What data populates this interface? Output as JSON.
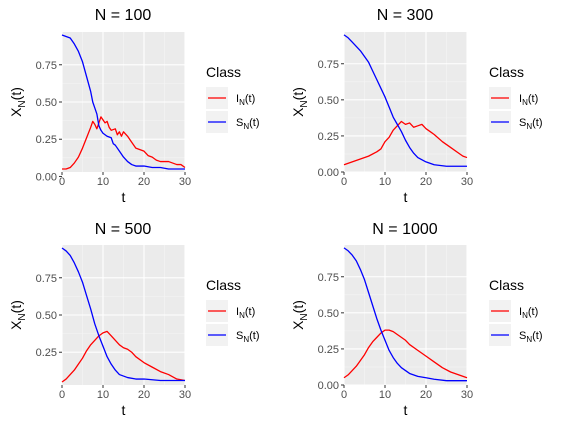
{
  "chart_data": [
    {
      "type": "line",
      "title": "N = 100",
      "xlabel": "t",
      "ylabel_main": "X",
      "ylabel_sub": "N",
      "ylabel_tail": "(t)",
      "xlim": [
        0,
        30
      ],
      "ylim": [
        0.03,
        0.97
      ],
      "x_ticks": [
        0,
        10,
        20,
        30
      ],
      "y_ticks": [
        0.0,
        0.25,
        0.5,
        0.75
      ],
      "y_tick_labels": [
        "0.00",
        "0.25",
        "0.50",
        "0.75"
      ],
      "grid": true,
      "legend_title": "Class",
      "legend_position": "right",
      "series": [
        {
          "name": "I_N(t)",
          "label_main": "I",
          "label_sub": "N",
          "label_tail": "(t)",
          "color": "#ff0000",
          "points": [
            [
              0,
              0.05
            ],
            [
              1,
              0.05
            ],
            [
              2,
              0.06
            ],
            [
              3,
              0.09
            ],
            [
              4,
              0.13
            ],
            [
              5,
              0.19
            ],
            [
              6,
              0.26
            ],
            [
              7,
              0.33
            ],
            [
              7.5,
              0.37
            ],
            [
              8,
              0.35
            ],
            [
              8.5,
              0.32
            ],
            [
              9,
              0.36
            ],
            [
              9.5,
              0.4
            ],
            [
              10,
              0.38
            ],
            [
              10.5,
              0.36
            ],
            [
              11,
              0.37
            ],
            [
              11.5,
              0.33
            ],
            [
              12,
              0.31
            ],
            [
              13,
              0.32
            ],
            [
              13.5,
              0.28
            ],
            [
              14,
              0.3
            ],
            [
              14.5,
              0.27
            ],
            [
              15,
              0.3
            ],
            [
              16,
              0.27
            ],
            [
              17,
              0.23
            ],
            [
              18,
              0.19
            ],
            [
              19,
              0.18
            ],
            [
              20,
              0.17
            ],
            [
              21,
              0.14
            ],
            [
              22,
              0.13
            ],
            [
              23,
              0.11
            ],
            [
              24,
              0.1
            ],
            [
              26,
              0.1
            ],
            [
              28,
              0.08
            ],
            [
              29,
              0.08
            ],
            [
              30,
              0.06
            ]
          ]
        },
        {
          "name": "S_N(t)",
          "label_main": "S",
          "label_sub": "N",
          "label_tail": "(t)",
          "color": "#0000ff",
          "points": [
            [
              0,
              0.95
            ],
            [
              1,
              0.94
            ],
            [
              2,
              0.93
            ],
            [
              3,
              0.89
            ],
            [
              4,
              0.84
            ],
            [
              5,
              0.77
            ],
            [
              6,
              0.67
            ],
            [
              7,
              0.57
            ],
            [
              7.5,
              0.5
            ],
            [
              8,
              0.46
            ],
            [
              8.5,
              0.42
            ],
            [
              9,
              0.34
            ],
            [
              9.5,
              0.31
            ],
            [
              10,
              0.29
            ],
            [
              11,
              0.27
            ],
            [
              12,
              0.26
            ],
            [
              12.5,
              0.22
            ],
            [
              13,
              0.21
            ],
            [
              14,
              0.17
            ],
            [
              15,
              0.13
            ],
            [
              16,
              0.1
            ],
            [
              17,
              0.08
            ],
            [
              18,
              0.07
            ],
            [
              20,
              0.07
            ],
            [
              22,
              0.06
            ],
            [
              24,
              0.06
            ],
            [
              26,
              0.05
            ],
            [
              28,
              0.05
            ],
            [
              30,
              0.05
            ]
          ]
        }
      ]
    },
    {
      "type": "line",
      "title": "N = 300",
      "xlabel": "t",
      "ylabel_main": "X",
      "ylabel_sub": "N",
      "ylabel_tail": "(t)",
      "xlim": [
        0,
        30
      ],
      "ylim": [
        0.0,
        0.97
      ],
      "x_ticks": [
        0,
        10,
        20,
        30
      ],
      "y_ticks": [
        0.0,
        0.25,
        0.5,
        0.75
      ],
      "y_tick_labels": [
        "0.00",
        "0.25",
        "0.50",
        "0.75"
      ],
      "grid": true,
      "legend_title": "Class",
      "legend_position": "right",
      "series": [
        {
          "name": "I_N(t)",
          "label_main": "I",
          "label_sub": "N",
          "label_tail": "(t)",
          "color": "#ff0000",
          "points": [
            [
              0,
              0.05
            ],
            [
              2,
              0.07
            ],
            [
              4,
              0.09
            ],
            [
              6,
              0.11
            ],
            [
              8,
              0.14
            ],
            [
              9,
              0.16
            ],
            [
              10,
              0.21
            ],
            [
              11,
              0.24
            ],
            [
              12,
              0.29
            ],
            [
              13,
              0.32
            ],
            [
              14,
              0.35
            ],
            [
              15,
              0.33
            ],
            [
              16,
              0.34
            ],
            [
              17,
              0.31
            ],
            [
              18,
              0.32
            ],
            [
              19,
              0.33
            ],
            [
              20,
              0.3
            ],
            [
              21,
              0.28
            ],
            [
              22,
              0.26
            ],
            [
              24,
              0.21
            ],
            [
              26,
              0.17
            ],
            [
              28,
              0.13
            ],
            [
              29,
              0.11
            ],
            [
              30,
              0.1
            ]
          ]
        },
        {
          "name": "S_N(t)",
          "label_main": "S",
          "label_sub": "N",
          "label_tail": "(t)",
          "color": "#0000ff",
          "points": [
            [
              0,
              0.95
            ],
            [
              1,
              0.93
            ],
            [
              2,
              0.9
            ],
            [
              3,
              0.87
            ],
            [
              4,
              0.84
            ],
            [
              5,
              0.8
            ],
            [
              6,
              0.76
            ],
            [
              7,
              0.7
            ],
            [
              8,
              0.64
            ],
            [
              9,
              0.58
            ],
            [
              10,
              0.52
            ],
            [
              11,
              0.45
            ],
            [
              12,
              0.38
            ],
            [
              13,
              0.33
            ],
            [
              14,
              0.28
            ],
            [
              15,
              0.22
            ],
            [
              16,
              0.17
            ],
            [
              17,
              0.13
            ],
            [
              18,
              0.1
            ],
            [
              20,
              0.07
            ],
            [
              22,
              0.05
            ],
            [
              25,
              0.04
            ],
            [
              28,
              0.04
            ],
            [
              30,
              0.04
            ]
          ]
        }
      ]
    },
    {
      "type": "line",
      "title": "N = 500",
      "xlabel": "t",
      "ylabel_main": "X",
      "ylabel_sub": "N",
      "ylabel_tail": "(t)",
      "xlim": [
        0,
        30
      ],
      "ylim": [
        0.03,
        0.97
      ],
      "x_ticks": [
        0,
        10,
        20,
        30
      ],
      "y_ticks": [
        0.25,
        0.5,
        0.75
      ],
      "y_tick_labels": [
        "0.25",
        "0.50",
        "0.75"
      ],
      "grid": true,
      "legend_title": "Class",
      "legend_position": "right",
      "series": [
        {
          "name": "I_N(t)",
          "label_main": "I",
          "label_sub": "N",
          "label_tail": "(t)",
          "color": "#ff0000",
          "points": [
            [
              0,
              0.05
            ],
            [
              1,
              0.07
            ],
            [
              2,
              0.1
            ],
            [
              3,
              0.13
            ],
            [
              4,
              0.17
            ],
            [
              5,
              0.21
            ],
            [
              6,
              0.26
            ],
            [
              7,
              0.3
            ],
            [
              8,
              0.33
            ],
            [
              9,
              0.36
            ],
            [
              10,
              0.38
            ],
            [
              11,
              0.39
            ],
            [
              12,
              0.36
            ],
            [
              13,
              0.33
            ],
            [
              14,
              0.3
            ],
            [
              15,
              0.28
            ],
            [
              16,
              0.27
            ],
            [
              17,
              0.25
            ],
            [
              18,
              0.22
            ],
            [
              20,
              0.18
            ],
            [
              22,
              0.15
            ],
            [
              24,
              0.12
            ],
            [
              26,
              0.1
            ],
            [
              28,
              0.07
            ],
            [
              30,
              0.06
            ]
          ]
        },
        {
          "name": "S_N(t)",
          "label_main": "S",
          "label_sub": "N",
          "label_tail": "(t)",
          "color": "#0000ff",
          "points": [
            [
              0,
              0.95
            ],
            [
              1,
              0.93
            ],
            [
              2,
              0.9
            ],
            [
              3,
              0.85
            ],
            [
              4,
              0.79
            ],
            [
              5,
              0.72
            ],
            [
              6,
              0.63
            ],
            [
              7,
              0.54
            ],
            [
              8,
              0.44
            ],
            [
              9,
              0.36
            ],
            [
              10,
              0.29
            ],
            [
              11,
              0.22
            ],
            [
              12,
              0.17
            ],
            [
              13,
              0.13
            ],
            [
              14,
              0.1
            ],
            [
              16,
              0.08
            ],
            [
              18,
              0.07
            ],
            [
              20,
              0.07
            ],
            [
              24,
              0.06
            ],
            [
              28,
              0.06
            ],
            [
              30,
              0.06
            ]
          ]
        }
      ]
    },
    {
      "type": "line",
      "title": "N = 1000",
      "xlabel": "t",
      "ylabel_main": "X",
      "ylabel_sub": "N",
      "ylabel_tail": "(t)",
      "xlim": [
        0,
        30
      ],
      "ylim": [
        0.0,
        0.97
      ],
      "x_ticks": [
        0,
        10,
        20,
        30
      ],
      "y_ticks": [
        0.0,
        0.25,
        0.5,
        0.75
      ],
      "y_tick_labels": [
        "0.00",
        "0.25",
        "0.50",
        "0.75"
      ],
      "grid": true,
      "legend_title": "Class",
      "legend_position": "right",
      "series": [
        {
          "name": "I_N(t)",
          "label_main": "I",
          "label_sub": "N",
          "label_tail": "(t)",
          "color": "#ff0000",
          "points": [
            [
              0,
              0.05
            ],
            [
              1,
              0.07
            ],
            [
              2,
              0.1
            ],
            [
              3,
              0.13
            ],
            [
              4,
              0.17
            ],
            [
              5,
              0.21
            ],
            [
              6,
              0.26
            ],
            [
              7,
              0.3
            ],
            [
              8,
              0.33
            ],
            [
              9,
              0.36
            ],
            [
              10,
              0.38
            ],
            [
              11,
              0.38
            ],
            [
              12,
              0.37
            ],
            [
              13,
              0.35
            ],
            [
              14,
              0.33
            ],
            [
              15,
              0.31
            ],
            [
              16,
              0.28
            ],
            [
              18,
              0.24
            ],
            [
              20,
              0.2
            ],
            [
              22,
              0.16
            ],
            [
              24,
              0.12
            ],
            [
              26,
              0.09
            ],
            [
              28,
              0.07
            ],
            [
              30,
              0.05
            ]
          ]
        },
        {
          "name": "S_N(t)",
          "label_main": "S",
          "label_sub": "N",
          "label_tail": "(t)",
          "color": "#0000ff",
          "points": [
            [
              0,
              0.95
            ],
            [
              1,
              0.93
            ],
            [
              2,
              0.9
            ],
            [
              3,
              0.86
            ],
            [
              4,
              0.8
            ],
            [
              5,
              0.73
            ],
            [
              6,
              0.64
            ],
            [
              7,
              0.55
            ],
            [
              8,
              0.46
            ],
            [
              9,
              0.38
            ],
            [
              10,
              0.31
            ],
            [
              11,
              0.24
            ],
            [
              12,
              0.19
            ],
            [
              13,
              0.15
            ],
            [
              14,
              0.12
            ],
            [
              15,
              0.1
            ],
            [
              16,
              0.08
            ],
            [
              18,
              0.06
            ],
            [
              20,
              0.05
            ],
            [
              22,
              0.04
            ],
            [
              25,
              0.03
            ],
            [
              28,
              0.03
            ],
            [
              30,
              0.03
            ]
          ]
        }
      ]
    }
  ]
}
